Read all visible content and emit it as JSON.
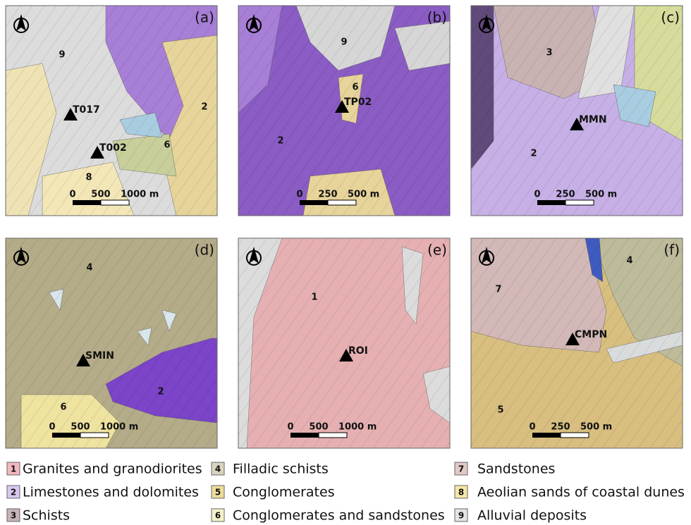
{
  "panels": [
    {
      "label": "(a)",
      "units": [
        "9",
        "2",
        "6",
        "8"
      ],
      "stations": [
        "T017",
        "T002"
      ],
      "scale": [
        "0",
        "500",
        "1000 m"
      ]
    },
    {
      "label": "(b)",
      "units": [
        "9",
        "6",
        "2"
      ],
      "stations": [
        "TP02"
      ],
      "scale": [
        "0",
        "250",
        "500 m"
      ]
    },
    {
      "label": "(c)",
      "units": [
        "3",
        "2"
      ],
      "stations": [
        "MMN"
      ],
      "scale": [
        "0",
        "250",
        "500 m"
      ]
    },
    {
      "label": "(d)",
      "units": [
        "4",
        "2",
        "6"
      ],
      "stations": [
        "SMIN"
      ],
      "scale": [
        "0",
        "500",
        "1000 m"
      ]
    },
    {
      "label": "(e)",
      "units": [
        "1"
      ],
      "stations": [
        "ROI"
      ],
      "scale": [
        "0",
        "500",
        "1000 m"
      ]
    },
    {
      "label": "(f)",
      "units": [
        "7",
        "4",
        "5"
      ],
      "stations": [
        "CMPN"
      ],
      "scale": [
        "0",
        "250",
        "500 m"
      ]
    }
  ],
  "legend": [
    {
      "number": "1",
      "text": "Granites and granodiorites"
    },
    {
      "number": "2",
      "text": "Limestones and dolomites"
    },
    {
      "number": "3",
      "text": "Schists"
    },
    {
      "number": "4",
      "text": "Filladic schists"
    },
    {
      "number": "5",
      "text": "Conglomerates"
    },
    {
      "number": "6",
      "text": "Conglomerates and sandstones"
    },
    {
      "number": "7",
      "text": "Sandstones"
    },
    {
      "number": "8",
      "text": "Aeolian sands of coastal dunes"
    },
    {
      "number": "9",
      "text": "Alluvial deposits"
    }
  ]
}
